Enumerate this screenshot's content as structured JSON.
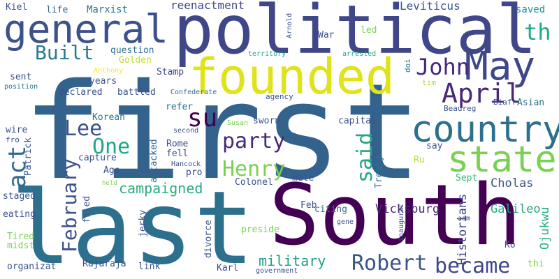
{
  "words": [
    {
      "text": "first",
      "color": "#33638d"
    },
    {
      "text": "last",
      "color": "#2d708e"
    },
    {
      "text": "South",
      "color": "#440154"
    },
    {
      "text": "political",
      "color": "#3f4788"
    },
    {
      "text": "founded",
      "color": "#dfe318"
    },
    {
      "text": "general",
      "color": "#3b528b"
    },
    {
      "text": "May",
      "color": "#3f4788"
    },
    {
      "text": "country",
      "color": "#2d708e"
    },
    {
      "text": "state",
      "color": "#7ad151"
    },
    {
      "text": "April",
      "color": "#482878"
    },
    {
      "text": "John",
      "color": "#482878"
    },
    {
      "text": "th",
      "color": "#22a884"
    },
    {
      "text": "Built",
      "color": "#2a788e"
    },
    {
      "text": "Robert",
      "color": "#3b528b"
    },
    {
      "text": "became",
      "color": "#3f4788"
    },
    {
      "text": "Henry",
      "color": "#7ad151"
    },
    {
      "text": "party",
      "color": "#482878"
    },
    {
      "text": "su",
      "color": "#440154"
    },
    {
      "text": "Lee",
      "color": "#3b528b"
    },
    {
      "text": "One",
      "color": "#22a884"
    },
    {
      "text": "act",
      "color": "#31688e"
    },
    {
      "text": "February",
      "color": "#3b528b"
    },
    {
      "text": "said",
      "color": "#22a884"
    },
    {
      "text": "campaigned",
      "color": "#27ad81"
    },
    {
      "text": "military",
      "color": "#1fa187"
    },
    {
      "text": "Vicksburg",
      "color": "#482878"
    },
    {
      "text": "Galileo",
      "color": "#22a884"
    },
    {
      "text": "Cholas",
      "color": "#3b528b"
    },
    {
      "text": "Historians",
      "color": "#3f4788"
    },
    {
      "text": "Ojukwu",
      "color": "#27ad81"
    },
    {
      "text": "reenactment",
      "color": "#3f4788"
    },
    {
      "text": "Leviticus",
      "color": "#39568c"
    },
    {
      "text": "saved",
      "color": "#21918c"
    },
    {
      "text": "Marxist",
      "color": "#2a788e"
    },
    {
      "text": "life",
      "color": "#33638d"
    },
    {
      "text": "Kiel",
      "color": "#3b528b"
    },
    {
      "text": "question",
      "color": "#2d708e"
    },
    {
      "text": "Golden",
      "color": "#bddf26"
    },
    {
      "text": "Stamp",
      "color": "#404387"
    },
    {
      "text": "years",
      "color": "#3b528b"
    },
    {
      "text": "battled",
      "color": "#3b528b"
    },
    {
      "text": "declared",
      "color": "#3b528b"
    },
    {
      "text": "sent",
      "color": "#3b528b"
    },
    {
      "text": "Korean",
      "color": "#2d708e"
    },
    {
      "text": "refer",
      "color": "#2d708e"
    },
    {
      "text": "sworn",
      "color": "#3b528b"
    },
    {
      "text": "capital",
      "color": "#3b528b"
    },
    {
      "text": "Rome",
      "color": "#3b528b"
    },
    {
      "text": "fell",
      "color": "#3b528b"
    },
    {
      "text": "capture",
      "color": "#3b528b"
    },
    {
      "text": "Age",
      "color": "#3b528b"
    },
    {
      "text": "pro",
      "color": "#3b528b"
    },
    {
      "text": "attacked",
      "color": "#33638d"
    },
    {
      "text": "Colonel",
      "color": "#3b528b"
    },
    {
      "text": "mule",
      "color": "#3b528b"
    },
    {
      "text": "citing",
      "color": "#2d708e"
    },
    {
      "text": "Treaty",
      "color": "#2d708e"
    },
    {
      "text": "Sept",
      "color": "#35b779"
    },
    {
      "text": "Ru",
      "color": "#b5de2b"
    },
    {
      "text": "say",
      "color": "#3b528b"
    },
    {
      "text": "Asian",
      "color": "#2d708e"
    },
    {
      "text": "Biafr",
      "color": "#3b528b"
    },
    {
      "text": "Beaureg",
      "color": "#3b528b"
    },
    {
      "text": "tim",
      "color": "#b5de2b"
    },
    {
      "text": "doi",
      "color": "#2d708e"
    },
    {
      "text": "agency",
      "color": "#3b528b"
    },
    {
      "text": "Confederate",
      "color": "#2d708e"
    },
    {
      "text": "Anthony",
      "color": "#fde725"
    },
    {
      "text": "position",
      "color": "#2d708e"
    },
    {
      "text": "territory",
      "color": "#22a884"
    },
    {
      "text": "arrested",
      "color": "#22a884"
    },
    {
      "text": "Arnold",
      "color": "#3b528b"
    },
    {
      "text": "War",
      "color": "#3b528b"
    },
    {
      "text": "led",
      "color": "#7ad151"
    },
    {
      "text": "wire",
      "color": "#3b528b"
    },
    {
      "text": "fro",
      "color": "#3b528b"
    },
    {
      "text": "Patrick",
      "color": "#3b528b"
    },
    {
      "text": "staged",
      "color": "#3b528b"
    },
    {
      "text": "eating",
      "color": "#3b528b"
    },
    {
      "text": "Tired",
      "color": "#7ad151"
    },
    {
      "text": "midst",
      "color": "#7ad151"
    },
    {
      "text": "organizat",
      "color": "#3b528b"
    },
    {
      "text": "Rajaraja",
      "color": "#3b528b"
    },
    {
      "text": "link",
      "color": "#3b528b"
    },
    {
      "text": "Karl",
      "color": "#3b528b"
    },
    {
      "text": "government",
      "color": "#3b528b"
    },
    {
      "text": "divorce",
      "color": "#3b528b"
    },
    {
      "text": "preside",
      "color": "#7ad151"
    },
    {
      "text": "Feb",
      "color": "#3b528b"
    },
    {
      "text": "filed",
      "color": "#3b528b"
    },
    {
      "text": "jerky",
      "color": "#3b528b"
    },
    {
      "text": "held",
      "color": "#7ad151"
    },
    {
      "text": "Hancock",
      "color": "#3b528b"
    },
    {
      "text": "second",
      "color": "#3b528b"
    },
    {
      "text": "Susan",
      "color": "#7ad151"
    },
    {
      "text": "gene",
      "color": "#3b528b"
    },
    {
      "text": "inaugural",
      "color": "#3b528b"
    },
    {
      "text": "adm",
      "color": "#3b528b"
    },
    {
      "text": "Ko",
      "color": "#3b528b"
    },
    {
      "text": "thi",
      "color": "#7ad151"
    }
  ]
}
